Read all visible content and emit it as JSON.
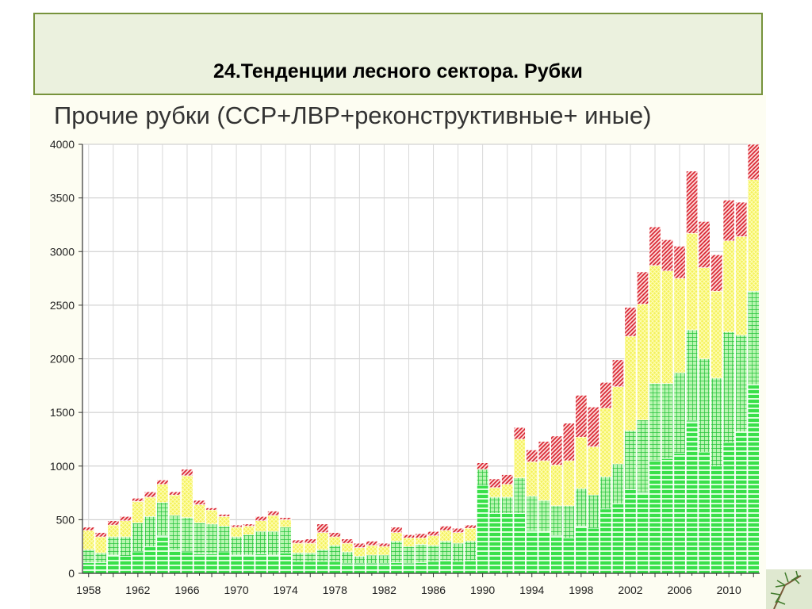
{
  "slide": {
    "title": "24.Тенденции лесного сектора. Рубки"
  },
  "colors": {
    "title_bg": "#ebf1de",
    "title_border": "#77933c",
    "green": "#39e04a",
    "yellow": "#f4f25a",
    "red": "#e0343f"
  },
  "chart_data": {
    "type": "bar",
    "stacked": true,
    "title": "Прочие рубки (ССР+ЛВР+реконструктивные+ иные)",
    "xlabel": "",
    "ylabel": "",
    "ylim": [
      0,
      4000
    ],
    "yticks": [
      0,
      500,
      1000,
      1500,
      2000,
      2500,
      3000,
      3500,
      4000
    ],
    "xtick_labels": [
      "1958",
      "1962",
      "1966",
      "1970",
      "1974",
      "1978",
      "1982",
      "1986",
      "1990",
      "1994",
      "1998",
      "2002",
      "2006",
      "2010"
    ],
    "grid": true,
    "legend": "none",
    "categories": [
      "1958",
      "1959",
      "1960",
      "1961",
      "1962",
      "1963",
      "1964",
      "1965",
      "1966",
      "1967",
      "1968",
      "1969",
      "1970",
      "1971",
      "1972",
      "1973",
      "1974",
      "1975",
      "1976",
      "1977",
      "1978",
      "1979",
      "1980",
      "1981",
      "1982",
      "1983",
      "1984",
      "1985",
      "1986",
      "1987",
      "1988",
      "1989",
      "1990",
      "1991",
      "1992",
      "1993",
      "1994",
      "1995",
      "1996",
      "1997",
      "1998",
      "1999",
      "2000",
      "2001",
      "2002",
      "2003",
      "2004",
      "2005",
      "2006",
      "2007",
      "2008",
      "2009",
      "2010",
      "2011",
      "2012"
    ],
    "series": [
      {
        "pattern": "green-striped",
        "values": [
          100,
          100,
          170,
          160,
          200,
          250,
          350,
          220,
          200,
          180,
          180,
          200,
          170,
          170,
          180,
          170,
          190,
          110,
          110,
          110,
          110,
          90,
          90,
          90,
          90,
          100,
          90,
          100,
          110,
          120,
          110,
          120,
          820,
          560,
          560,
          560,
          400,
          390,
          350,
          330,
          440,
          420,
          600,
          650,
          780,
          750,
          1050,
          1070,
          1120,
          1420,
          1130,
          1000,
          1220,
          1320,
          1760
        ]
      },
      {
        "pattern": "green-grid",
        "values": [
          120,
          90,
          170,
          180,
          270,
          280,
          310,
          320,
          320,
          290,
          280,
          240,
          170,
          190,
          210,
          220,
          240,
          80,
          80,
          110,
          150,
          110,
          70,
          80,
          80,
          200,
          160,
          170,
          150,
          180,
          170,
          180,
          150,
          150,
          150,
          330,
          320,
          290,
          280,
          300,
          350,
          310,
          300,
          370,
          550,
          680,
          720,
          700,
          750,
          850,
          870,
          820,
          1030,
          900,
          870
        ]
      },
      {
        "pattern": "yellow-hatch",
        "values": [
          180,
          150,
          110,
          150,
          200,
          180,
          170,
          190,
          390,
          170,
          130,
          90,
          90,
          80,
          100,
          150,
          70,
          90,
          90,
          160,
          80,
          80,
          80,
          90,
          80,
          80,
          80,
          60,
          90,
          100,
          100,
          120,
          0,
          90,
          120,
          360,
          320,
          370,
          380,
          420,
          480,
          450,
          640,
          720,
          880,
          1080,
          1100,
          1050,
          880,
          900,
          850,
          810,
          850,
          920,
          1040
        ]
      },
      {
        "pattern": "red-hatch",
        "values": [
          30,
          40,
          40,
          40,
          30,
          50,
          40,
          30,
          60,
          40,
          20,
          20,
          20,
          20,
          40,
          40,
          20,
          30,
          40,
          80,
          40,
          40,
          40,
          40,
          30,
          50,
          30,
          40,
          40,
          40,
          40,
          30,
          60,
          80,
          90,
          110,
          110,
          180,
          270,
          350,
          390,
          370,
          240,
          250,
          270,
          300,
          360,
          290,
          300,
          580,
          430,
          340,
          380,
          320,
          330
        ]
      }
    ]
  }
}
